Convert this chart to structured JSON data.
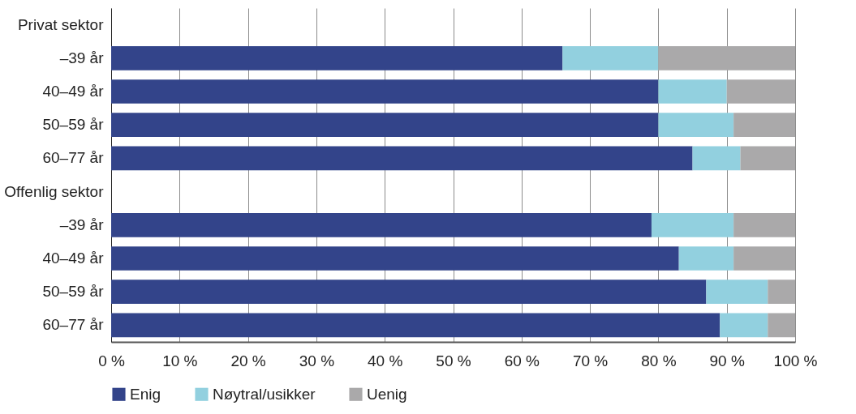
{
  "chart_data": {
    "type": "bar",
    "orientation": "horizontal",
    "stacked": true,
    "categories": [
      "Privat sektor",
      "–39 år",
      "40–49 år",
      "50–59 år",
      "60–77 år",
      "Offenlig sektor",
      "–39 år",
      "40–49 år",
      "50–59 år",
      "60–77 år"
    ],
    "series": [
      {
        "name": "Enig",
        "color": "#33448a",
        "values": [
          null,
          66,
          80,
          80,
          85,
          null,
          79,
          83,
          87,
          89
        ]
      },
      {
        "name": "Nøytral/usikker",
        "color": "#92d0df",
        "values": [
          null,
          14,
          10,
          11,
          7,
          null,
          12,
          8,
          9,
          7
        ]
      },
      {
        "name": "Uenig",
        "color": "#aaa9aa",
        "values": [
          null,
          20,
          10,
          9,
          8,
          null,
          9,
          9,
          4,
          4
        ]
      }
    ],
    "xlim": [
      0,
      100
    ],
    "xticks": [
      {
        "value": 0,
        "label": "0 %"
      },
      {
        "value": 10,
        "label": "10 %"
      },
      {
        "value": 20,
        "label": "20 %"
      },
      {
        "value": 30,
        "label": "30 %"
      },
      {
        "value": 40,
        "label": "40 %"
      },
      {
        "value": 50,
        "label": "50 %"
      },
      {
        "value": 60,
        "label": "60 %"
      },
      {
        "value": 70,
        "label": "70 %"
      },
      {
        "value": 80,
        "label": "80 %"
      },
      {
        "value": 90,
        "label": "90 %"
      },
      {
        "value": 100,
        "label": "100 %"
      }
    ],
    "grid": "x",
    "legend": "bottom"
  }
}
